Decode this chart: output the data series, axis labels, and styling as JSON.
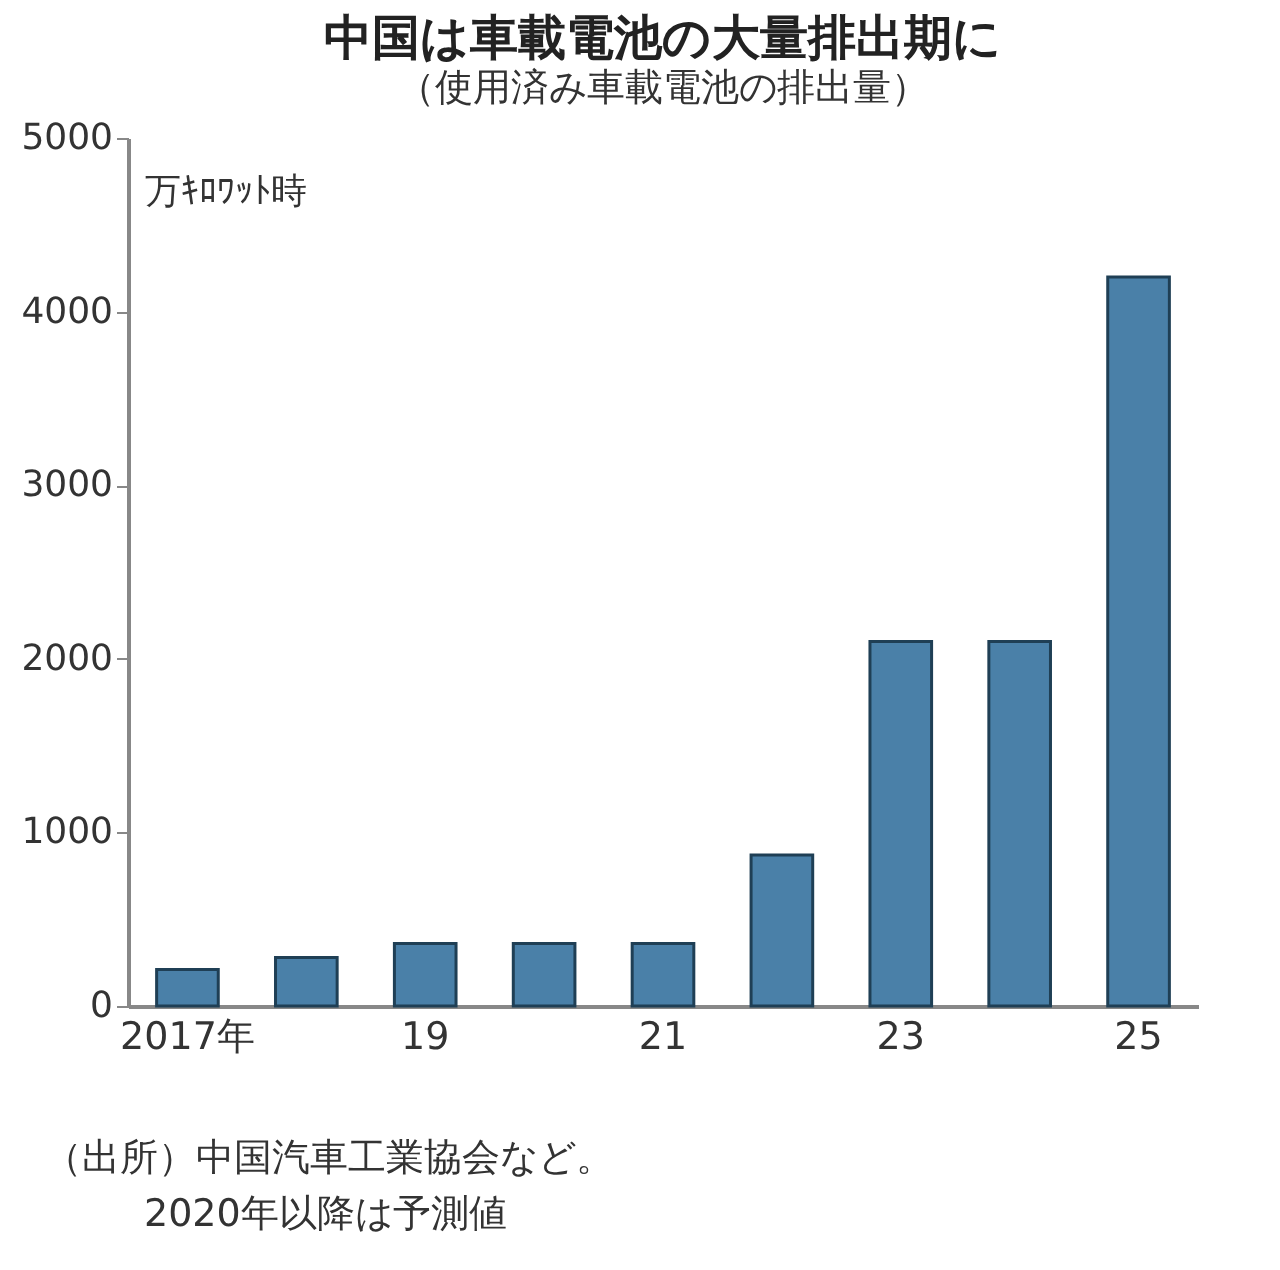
{
  "chart_data": {
    "type": "bar",
    "title": "中国は車載電池の大量排出期に",
    "subtitle": "（使用済み車載電池の排出量）",
    "ylabel": "万ｷﾛﾜｯﾄ時",
    "categories": [
      "2017年",
      null,
      "19",
      null,
      "21",
      null,
      "23",
      null,
      "25"
    ],
    "values": [
      210,
      280,
      360,
      360,
      360,
      870,
      2100,
      2100,
      4200
    ],
    "color": "#4a80a8",
    "ylim": [
      0,
      5000
    ],
    "yticks": [
      0,
      1000,
      2000,
      3000,
      4000,
      5000
    ],
    "grid": false,
    "annotations": [
      "（出所）中国汽車工業協会など。",
      "2020年以降は予測値"
    ]
  }
}
